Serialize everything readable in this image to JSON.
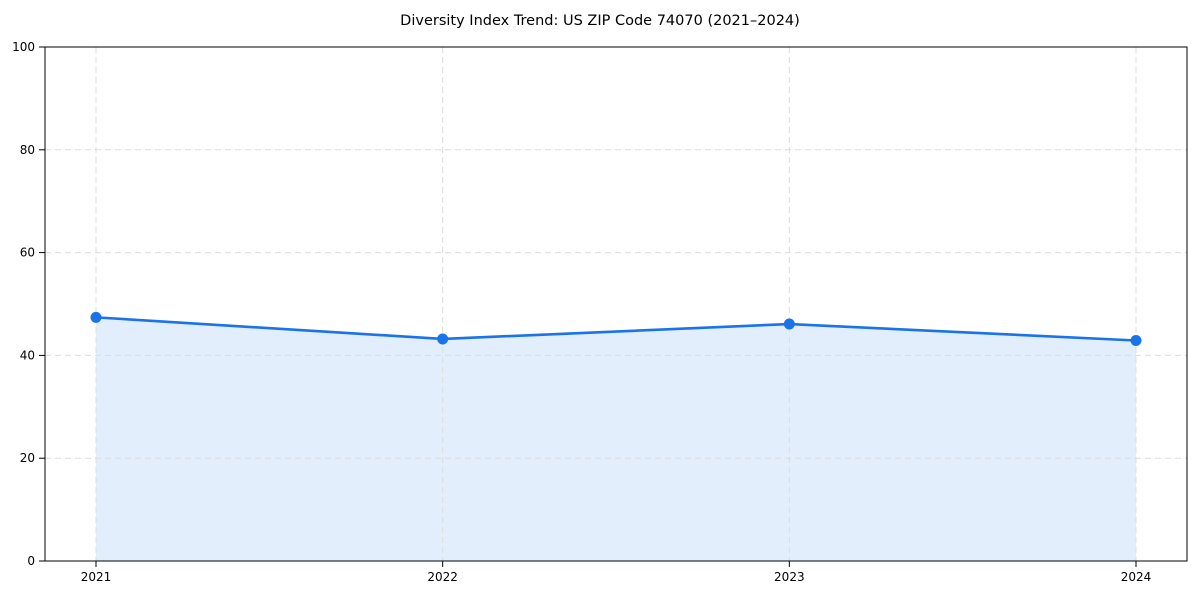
{
  "chart_data": {
    "type": "line",
    "title": "Diversity Index Trend: US ZIP Code 74070 (2021–2024)",
    "categories": [
      "2021",
      "2022",
      "2023",
      "2024"
    ],
    "series": [
      {
        "name": "Diversity Index",
        "values": [
          47.4,
          43.2,
          46.1,
          42.9
        ]
      }
    ],
    "xlabel": "",
    "ylabel": "",
    "ylim": [
      0,
      100
    ],
    "yticks": [
      0,
      20,
      40,
      60,
      80,
      100
    ],
    "grid": "dashed-both-axes",
    "legend": "none",
    "marker": "circle",
    "area_fill": true,
    "colors": {
      "line": "#1a73e8",
      "marker": "#1a73e8",
      "fill": "#1a73e8",
      "fill_opacity": 0.12,
      "grid": "#dcdcdc",
      "axis": "#000000",
      "text": "#000000",
      "background": "#ffffff"
    }
  }
}
